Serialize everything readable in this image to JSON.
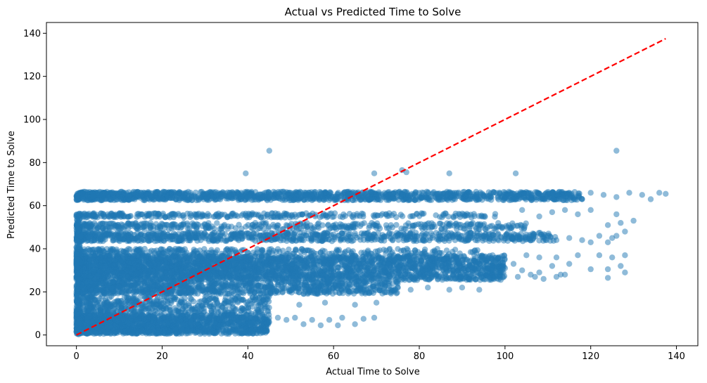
{
  "chart_data": {
    "type": "scatter",
    "title": "Actual vs Predicted Time to Solve",
    "xlabel": "Actual Time to Solve",
    "ylabel": "Predicted Time to Solve",
    "xlim": [
      -7,
      145
    ],
    "ylim": [
      -5,
      145
    ],
    "xticks": [
      0,
      20,
      40,
      60,
      80,
      100,
      120,
      140
    ],
    "yticks": [
      0,
      20,
      40,
      60,
      80,
      100,
      120,
      140
    ],
    "grid": false,
    "point_color": "#1f77b4",
    "point_alpha": 0.5,
    "reference_line": {
      "style": "dashed",
      "color": "#ff0000",
      "x": [
        0,
        137.5
      ],
      "y": [
        0,
        137.5
      ]
    },
    "series": [
      {
        "points": [
          [
            45,
            85.5
          ],
          [
            126,
            85.5
          ],
          [
            39.5,
            75
          ],
          [
            69.5,
            75
          ],
          [
            87,
            75
          ],
          [
            102.5,
            75
          ],
          [
            76,
            76.5
          ],
          [
            77,
            75.5
          ],
          [
            110,
            63
          ],
          [
            113,
            64
          ],
          [
            118,
            63
          ],
          [
            120,
            66
          ],
          [
            123,
            65
          ],
          [
            126,
            64
          ],
          [
            129,
            66
          ],
          [
            132,
            65
          ],
          [
            134,
            63
          ],
          [
            136,
            66
          ],
          [
            137.5,
            65.5
          ],
          [
            104,
            58
          ],
          [
            108,
            55
          ],
          [
            111,
            57
          ],
          [
            114,
            58
          ],
          [
            117,
            56
          ],
          [
            120,
            58
          ],
          [
            126,
            56
          ],
          [
            130,
            53
          ],
          [
            124,
            51
          ],
          [
            127,
            52
          ],
          [
            128,
            48
          ],
          [
            126,
            46
          ],
          [
            125,
            45
          ],
          [
            110,
            46
          ],
          [
            112,
            44
          ],
          [
            115,
            45
          ],
          [
            118,
            44
          ],
          [
            120,
            43
          ],
          [
            122,
            46
          ],
          [
            124,
            43
          ],
          [
            105,
            37
          ],
          [
            108,
            36
          ],
          [
            112,
            36
          ],
          [
            117,
            37
          ],
          [
            122,
            37
          ],
          [
            125,
            36
          ],
          [
            128,
            37
          ],
          [
            100,
            31
          ],
          [
            102,
            33
          ],
          [
            104,
            30
          ],
          [
            106,
            28
          ],
          [
            108,
            29
          ],
          [
            111,
            32
          ],
          [
            113,
            28
          ],
          [
            115,
            33
          ],
          [
            120,
            30.5
          ],
          [
            124,
            30.5
          ],
          [
            127,
            32
          ],
          [
            103,
            27
          ],
          [
            107,
            27
          ],
          [
            109,
            26
          ],
          [
            112,
            27
          ],
          [
            114,
            28
          ],
          [
            124,
            26.5
          ],
          [
            128,
            29
          ],
          [
            75,
            22
          ],
          [
            78,
            21
          ],
          [
            82,
            22
          ],
          [
            87,
            21
          ],
          [
            90,
            22
          ],
          [
            94,
            21
          ],
          [
            64,
            20
          ],
          [
            67,
            21
          ],
          [
            70,
            22
          ],
          [
            72,
            20
          ],
          [
            45,
            6
          ],
          [
            47,
            8
          ],
          [
            49,
            7
          ],
          [
            51,
            8
          ],
          [
            53,
            5
          ],
          [
            55,
            7
          ],
          [
            57,
            4.5
          ],
          [
            59,
            7
          ],
          [
            61,
            4.5
          ],
          [
            62,
            8
          ],
          [
            65,
            5
          ],
          [
            67,
            7.5
          ],
          [
            69.5,
            8
          ],
          [
            40,
            14
          ],
          [
            43,
            15
          ],
          [
            52,
            14
          ],
          [
            58,
            15
          ],
          [
            65,
            14
          ],
          [
            70,
            15
          ]
        ]
      }
    ]
  }
}
